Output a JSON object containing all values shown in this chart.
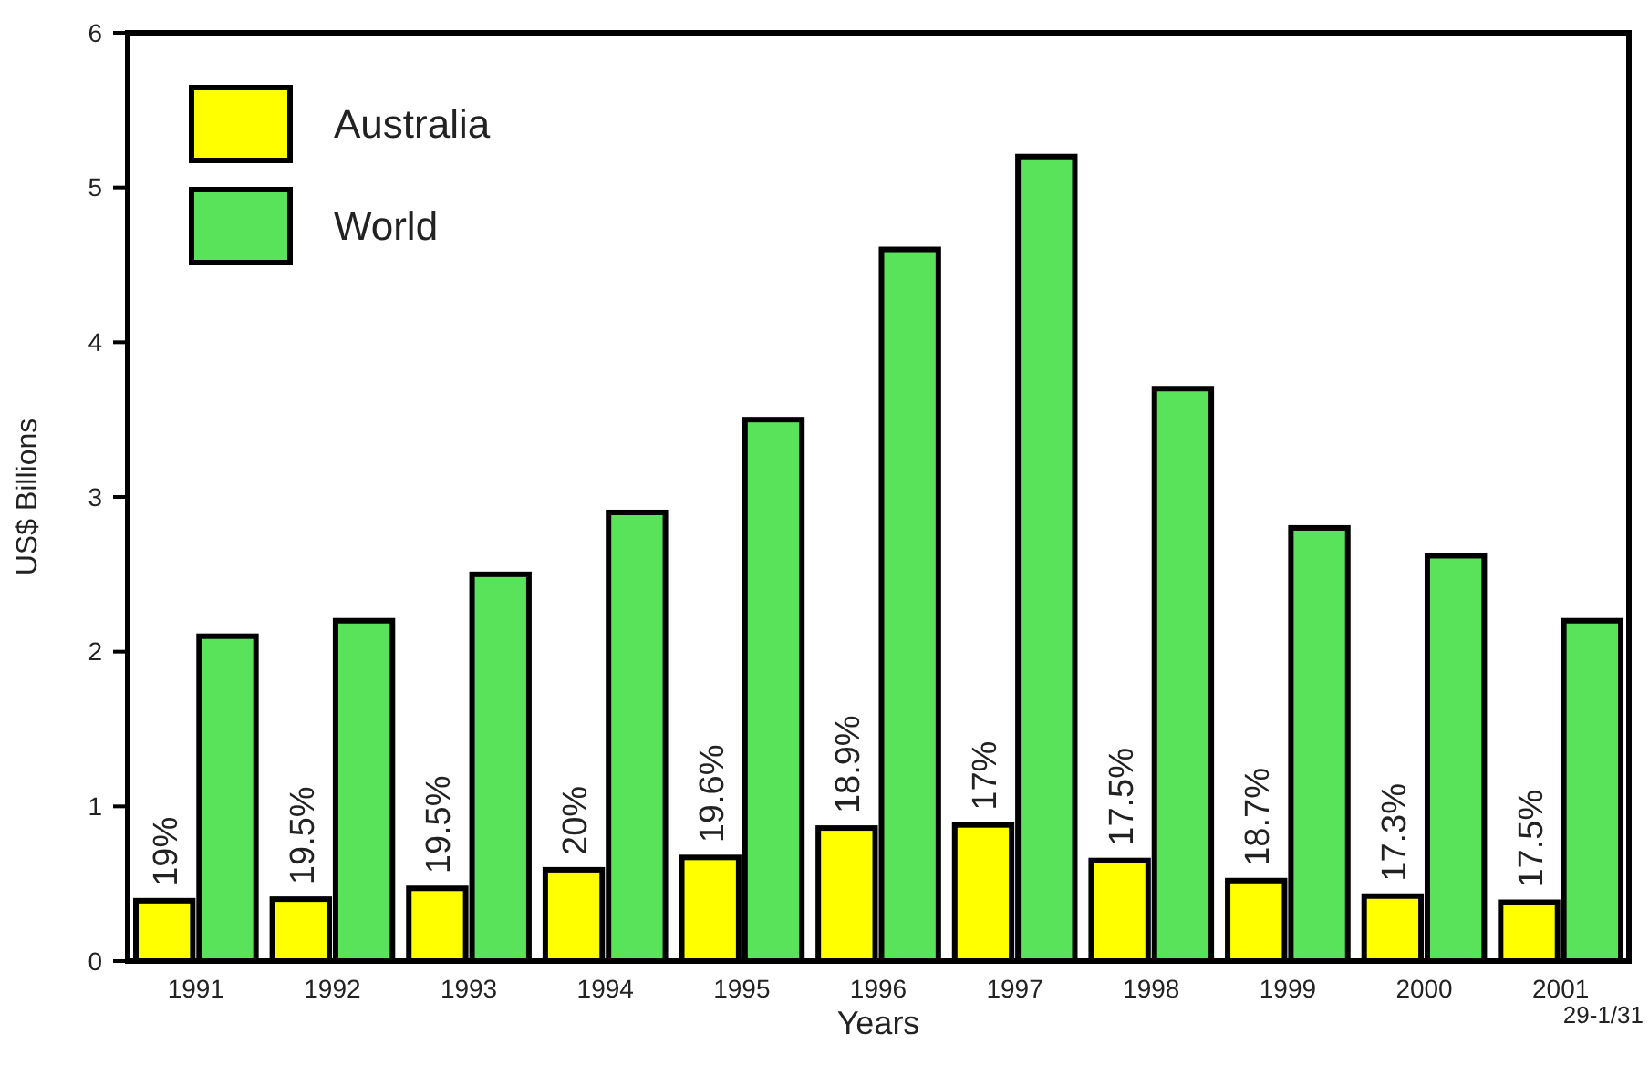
{
  "chart_data": {
    "type": "bar",
    "xlabel": "Years",
    "ylabel": "US$ Billions",
    "categories": [
      "1991",
      "1992",
      "1993",
      "1994",
      "1995",
      "1996",
      "1997",
      "1998",
      "1999",
      "2000",
      "2001"
    ],
    "series": [
      {
        "name": "Australia",
        "color": "#ffff00",
        "values": [
          0.39,
          0.4,
          0.47,
          0.59,
          0.67,
          0.86,
          0.88,
          0.65,
          0.52,
          0.42,
          0.38
        ]
      },
      {
        "name": "World",
        "color": "#59e35b",
        "values": [
          2.1,
          2.2,
          2.5,
          2.9,
          3.5,
          4.6,
          5.2,
          3.7,
          2.8,
          2.62,
          2.2
        ]
      }
    ],
    "ylim": [
      0,
      6
    ],
    "yticks": [
      0,
      1,
      2,
      3,
      4,
      5,
      6
    ],
    "grid": false,
    "legend": "top left",
    "annotations": [
      {
        "text": "19%",
        "x": "1991",
        "y": 0.39
      },
      {
        "text": "19.5%",
        "x": "1992",
        "y": 0.4
      },
      {
        "text": "19.5%",
        "x": "1993",
        "y": 0.47
      },
      {
        "text": "20%",
        "x": "1994",
        "y": 0.59
      },
      {
        "text": "19.6%",
        "x": "1995",
        "y": 0.67
      },
      {
        "text": "18.9%",
        "x": "1996",
        "y": 0.86
      },
      {
        "text": "17%",
        "x": "1997",
        "y": 0.88
      },
      {
        "text": "17.5%",
        "x": "1998",
        "y": 0.65
      },
      {
        "text": "18.7%",
        "x": "1999",
        "y": 0.52
      },
      {
        "text": "17.3%",
        "x": "2000",
        "y": 0.42
      },
      {
        "text": "17.5%",
        "x": "2001",
        "y": 0.38
      },
      "29-1/31"
    ]
  }
}
